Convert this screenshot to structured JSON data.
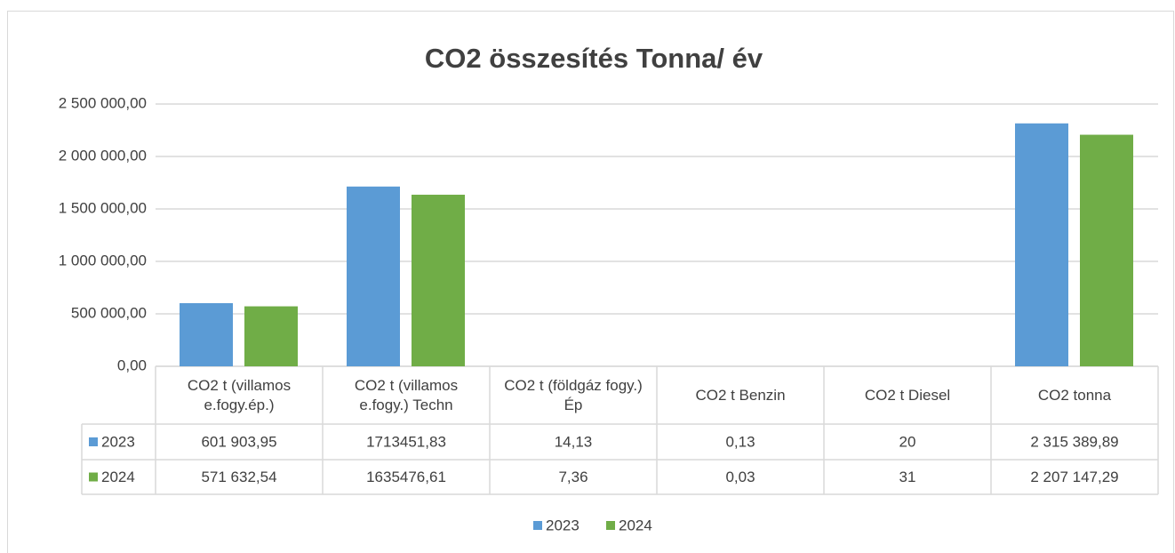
{
  "chart_data": {
    "type": "bar",
    "title": "CO2 összesítés Tonna/ év",
    "categories": [
      "CO2 t (villamos e.fogy.ép.)",
      "CO2 t (villamos e.fogy.) Techn",
      "CO2 t (földgáz fogy.) Ép",
      "CO2 t Benzin",
      "CO2 t Diesel",
      "CO2 tonna"
    ],
    "series": [
      {
        "name": "2023",
        "color": "#5b9bd5",
        "values": [
          601903.95,
          1713451.83,
          14.13,
          0.13,
          20,
          2315389.89
        ],
        "value_labels": [
          "601 903,95",
          "1713451,83",
          "14,13",
          "0,13",
          "20",
          "2 315 389,89"
        ]
      },
      {
        "name": "2024",
        "color": "#70ad47",
        "values": [
          571632.54,
          1635476.61,
          7.36,
          0.03,
          31,
          2207147.29
        ],
        "value_labels": [
          "571 632,54",
          "1635476,61",
          "7,36",
          "0,03",
          "31",
          "2 207 147,29"
        ]
      }
    ],
    "ylim": [
      0,
      2500000
    ],
    "yticks": [
      {
        "value": 0,
        "label": "0,00"
      },
      {
        "value": 500000,
        "label": "500 000,00"
      },
      {
        "value": 1000000,
        "label": "1 000 000,00"
      },
      {
        "value": 1500000,
        "label": "1 500 000,00"
      },
      {
        "value": 2000000,
        "label": "2 000 000,00"
      },
      {
        "value": 2500000,
        "label": "2 500 000,00"
      }
    ],
    "grid": true,
    "legend": "bottom"
  }
}
